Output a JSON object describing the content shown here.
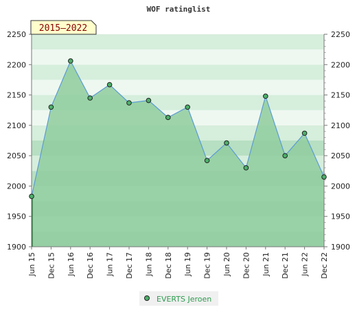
{
  "chart_data": {
    "type": "area",
    "title": "WOF ratinglist",
    "period_badge": "2015–2022",
    "x": [
      "Jun 15",
      "Dec 15",
      "Jun 16",
      "Dec 16",
      "Jun 17",
      "Dec 17",
      "Jun 18",
      "Dec 18",
      "Jun 19",
      "Dec 19",
      "Jun 20",
      "Dec 20",
      "Jun 21",
      "Dec 21",
      "Jun 22",
      "Dec 22"
    ],
    "series": [
      {
        "name": "EVERTS Jeroen",
        "values": [
          1983,
          2130,
          2206,
          2145,
          2167,
          2137,
          2141,
          2113,
          2130,
          2042,
          2071,
          2030,
          2148,
          2050,
          2087,
          2015
        ]
      }
    ],
    "ylim": [
      1900,
      2250
    ],
    "yticks": [
      1900,
      1950,
      2000,
      2050,
      2100,
      2150,
      2200,
      2250
    ],
    "xlabel": "",
    "ylabel": "",
    "grid": true,
    "legend_position": "bottom-center",
    "colors": {
      "line": "#5b9bd5",
      "fill": "#8fcc9e",
      "marker": "#4caf6a",
      "band_dark": "#7ec595",
      "band_mid": "#9bd3aa",
      "band_light": "#b7dfc2",
      "band_pale": "#d6eedc",
      "band_white": "#eef8f0",
      "badge_bg": "#ffffcc",
      "badge_text": "#880000"
    }
  }
}
